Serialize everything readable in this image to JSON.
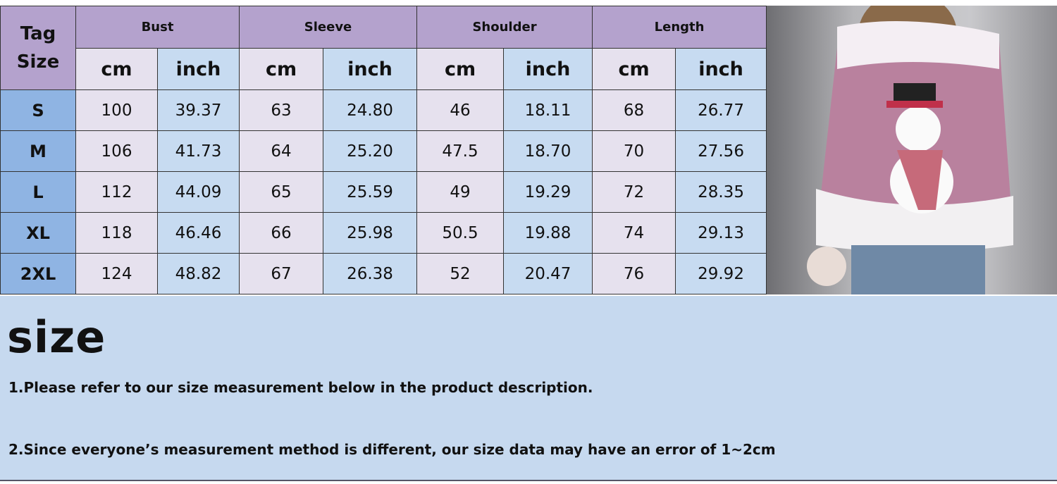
{
  "table": {
    "tag_header": "Tag Size",
    "groups": [
      "Bust",
      "Sleeve",
      "Shoulder",
      "Length"
    ],
    "units": [
      "cm",
      "inch"
    ],
    "rows": [
      {
        "size": "S",
        "values": [
          "100",
          "39.37",
          "63",
          "24.80",
          "46",
          "18.11",
          "68",
          "26.77"
        ]
      },
      {
        "size": "M",
        "values": [
          "106",
          "41.73",
          "64",
          "25.20",
          "47.5",
          "18.70",
          "70",
          "27.56"
        ]
      },
      {
        "size": "L",
        "values": [
          "112",
          "44.09",
          "65",
          "25.59",
          "49",
          "19.29",
          "72",
          "28.35"
        ]
      },
      {
        "size": "XL",
        "values": [
          "118",
          "46.46",
          "66",
          "25.98",
          "50.5",
          "19.88",
          "74",
          "29.13"
        ]
      },
      {
        "size": "2XL",
        "values": [
          "124",
          "48.82",
          "67",
          "26.38",
          "52",
          "20.47",
          "76",
          "29.92"
        ]
      }
    ]
  },
  "photo": {
    "description_icon": "model-snowman-sweatshirt-photo"
  },
  "notes": {
    "title": "size",
    "items": [
      "1.Please refer to our size measurement below in the product description.",
      "2.Since everyone’s measurement method is different, our size data may have an error of 1~2cm"
    ]
  },
  "colors": {
    "header": "#b4a2cd",
    "cm": "#e6e1ee",
    "inch": "#c7dbf1",
    "size": "#8fb4e3",
    "notes_bg": "#c6d9ef"
  }
}
